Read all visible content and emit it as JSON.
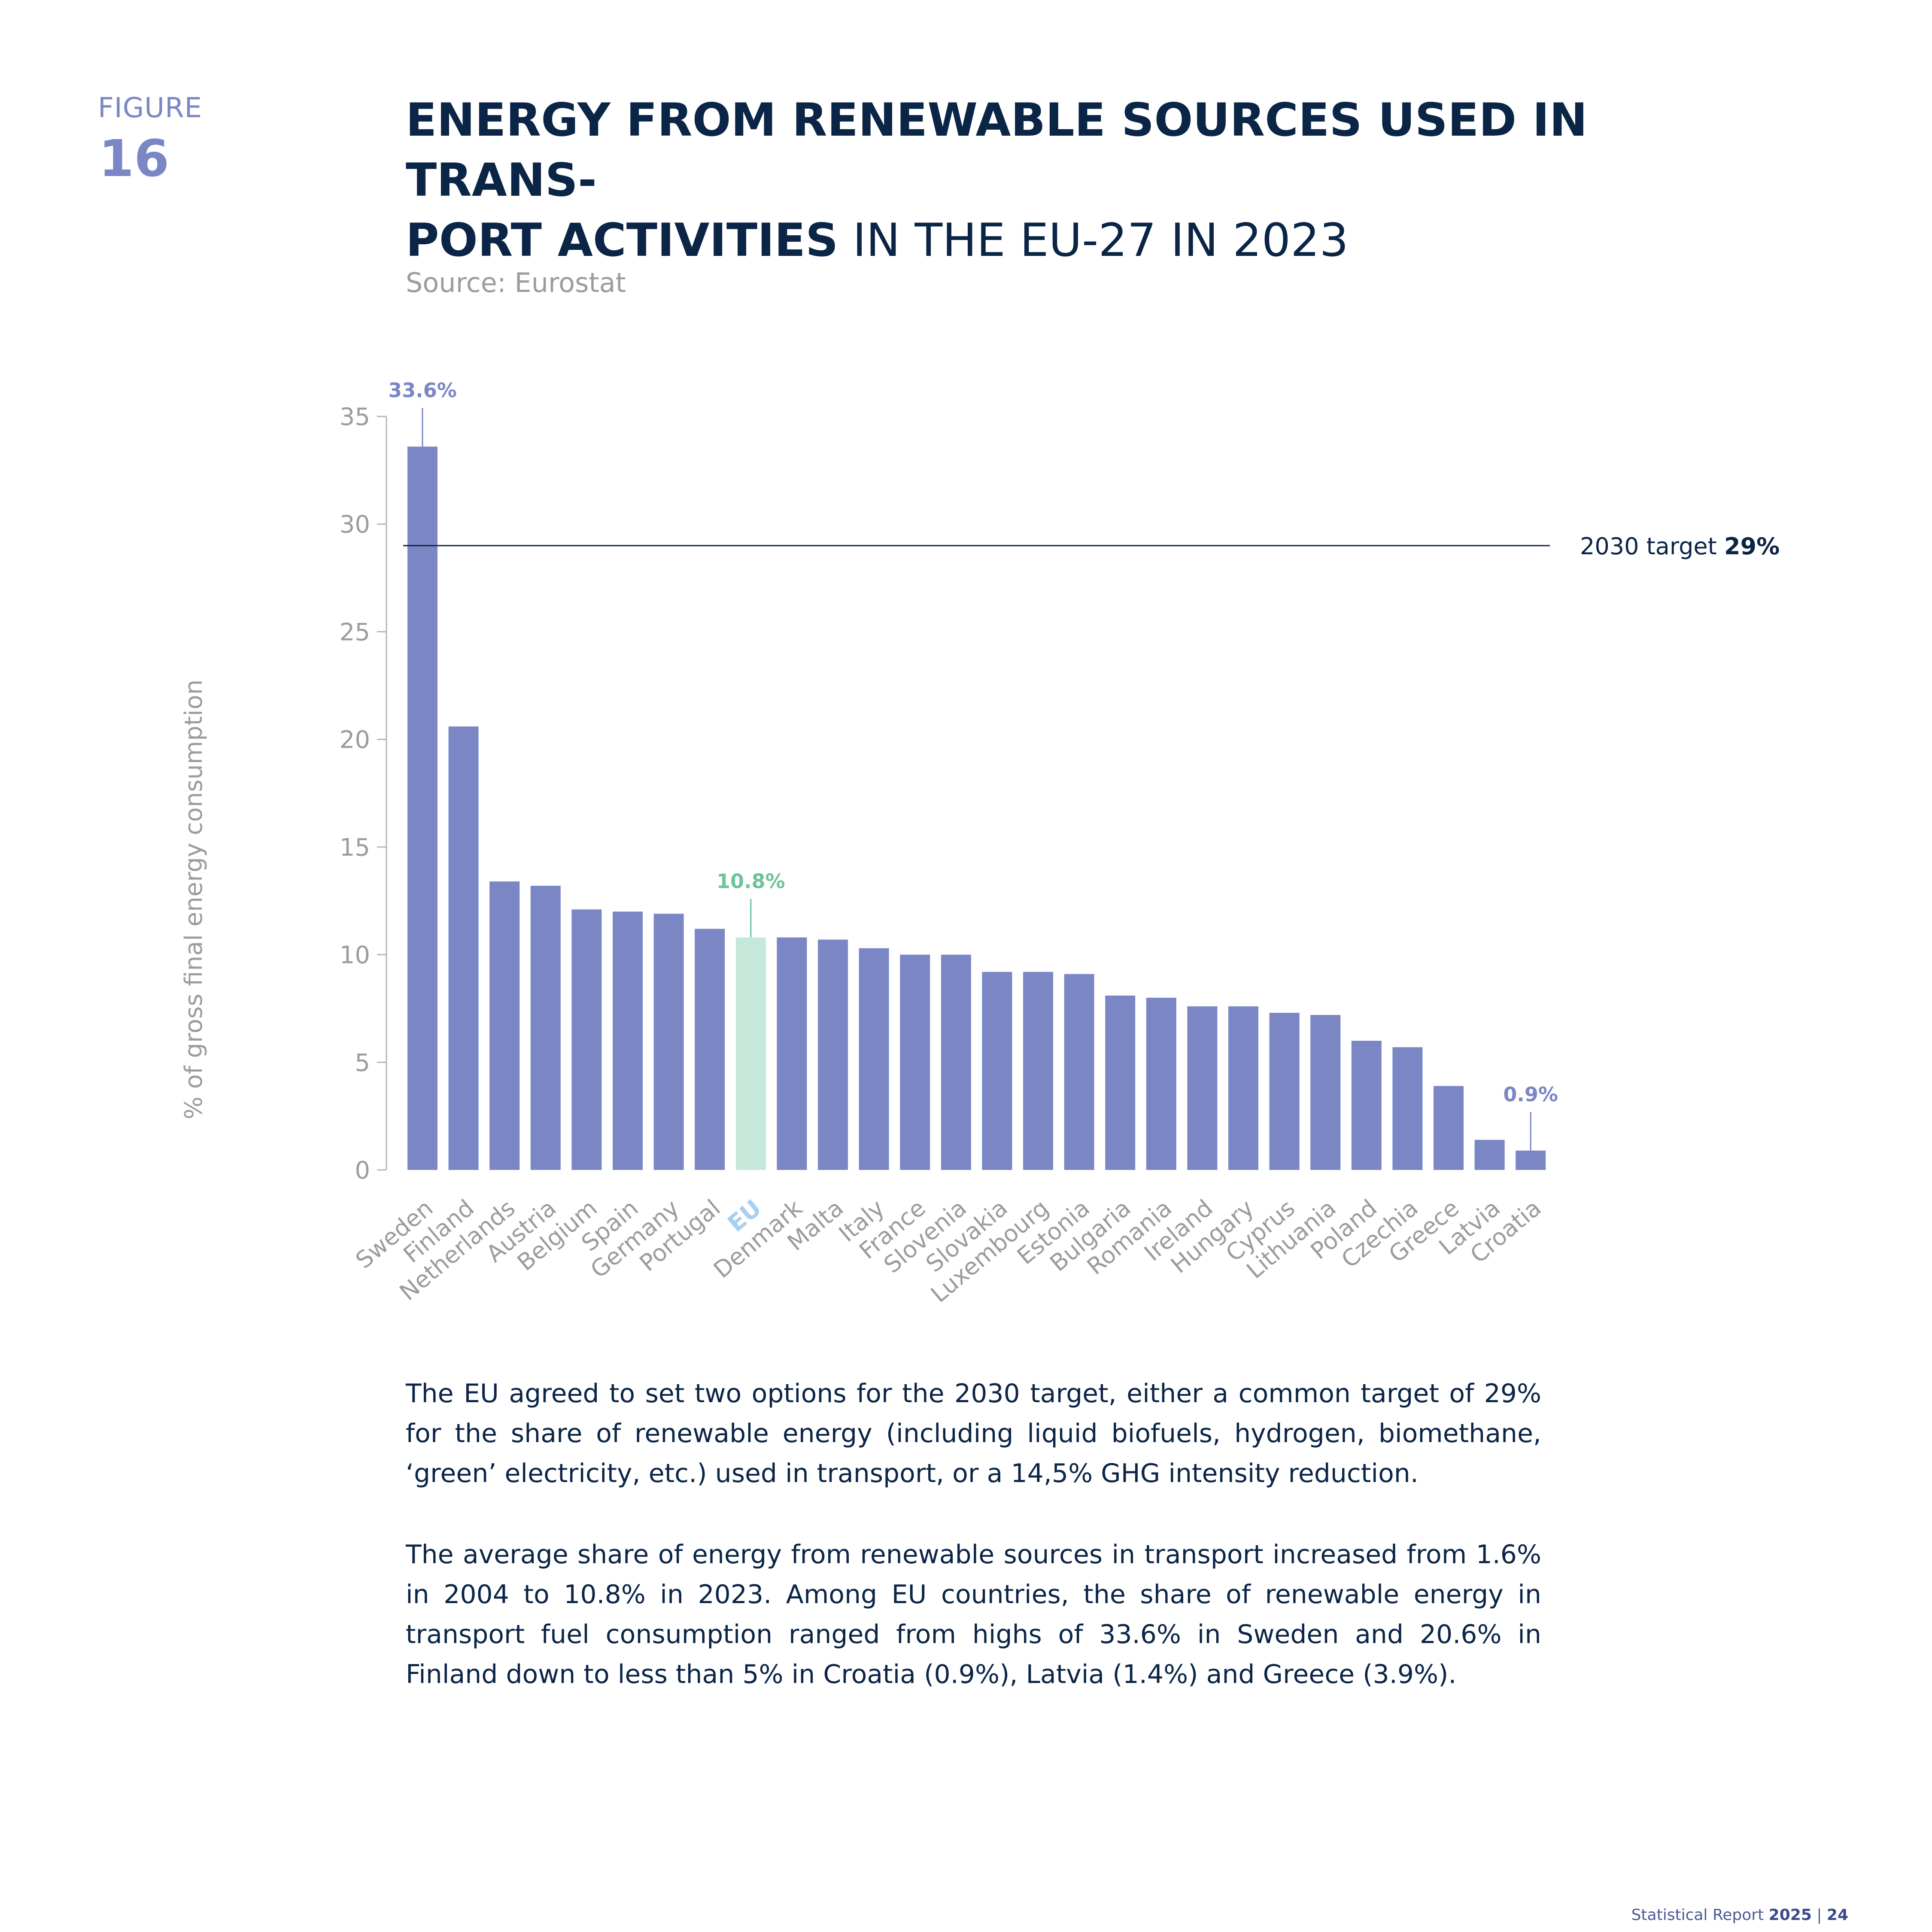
{
  "figure": {
    "label": "FIGURE",
    "number": "16"
  },
  "title": {
    "bold_line1": "ENERGY FROM RENEWABLE SOURCES USED IN TRANS-",
    "bold_line2": "PORT ACTIVITIES",
    "light": " IN THE EU-27 IN 2023"
  },
  "source": "Source: Eurostat",
  "colors": {
    "bar": "#7a87c4",
    "eu_bar": "#c5e8da",
    "eu_label": "#a8cff0",
    "eu_value": "#6cc49a",
    "target_line": "#0b2547",
    "axis_text": "#9c9c9c",
    "title": "#0b2547"
  },
  "chart_data": {
    "type": "bar",
    "ylabel": "% of gross final energy consumption",
    "ylim": [
      0,
      35
    ],
    "yticks": [
      0,
      5,
      10,
      15,
      20,
      25,
      30,
      35
    ],
    "grid": false,
    "categories": [
      "Sweden",
      "Finland",
      "Netherlands",
      "Austria",
      "Belgium",
      "Spain",
      "Germany",
      "Portugal",
      "EU",
      "Denmark",
      "Malta",
      "Italy",
      "France",
      "Slovenia",
      "Slovakia",
      "Luxembourg",
      "Estonia",
      "Bulgaria",
      "Romania",
      "Ireland",
      "Hungary",
      "Cyprus",
      "Lithuania",
      "Poland",
      "Czechia",
      "Greece",
      "Latvia",
      "Croatia"
    ],
    "values": [
      33.6,
      20.6,
      13.4,
      13.2,
      12.1,
      12.0,
      11.9,
      11.2,
      10.8,
      10.8,
      10.7,
      10.3,
      10.0,
      10.0,
      9.2,
      9.2,
      9.1,
      8.1,
      8.0,
      7.6,
      7.6,
      7.3,
      7.2,
      6.0,
      5.7,
      3.9,
      1.4,
      0.9
    ],
    "highlight": "EU",
    "annotations": [
      {
        "category": "Sweden",
        "label": "33.6%"
      },
      {
        "category": "EU",
        "label": "10.8%"
      },
      {
        "category": "Croatia",
        "label": "0.9%"
      }
    ],
    "target": {
      "value": 29,
      "label_prefix": "2030 target ",
      "label_value": "29%"
    }
  },
  "paragraphs": [
    "The EU agreed to set two options for the 2030 target, either a common target of 29% for the share of renewable energy (including liquid biofuels, hydrogen, biomethane, ‘green’ electricity, etc.) used in transport, or a 14,5% GHG intensity reduction.",
    "The average share of energy from renewable sources in transport increased from 1.6% in 2004 to 10.8% in 2023. Among EU countries, the share of renewable energy in transport fuel consumption ranged from highs of 33.6% in Sweden and 20.6% in Finland down to less than 5% in Croatia (0.9%), Latvia (1.4%) and Greece (3.9%)."
  ],
  "footer": {
    "text": "Statistical Report ",
    "year": "2025",
    "separator": " | ",
    "page": "24"
  }
}
